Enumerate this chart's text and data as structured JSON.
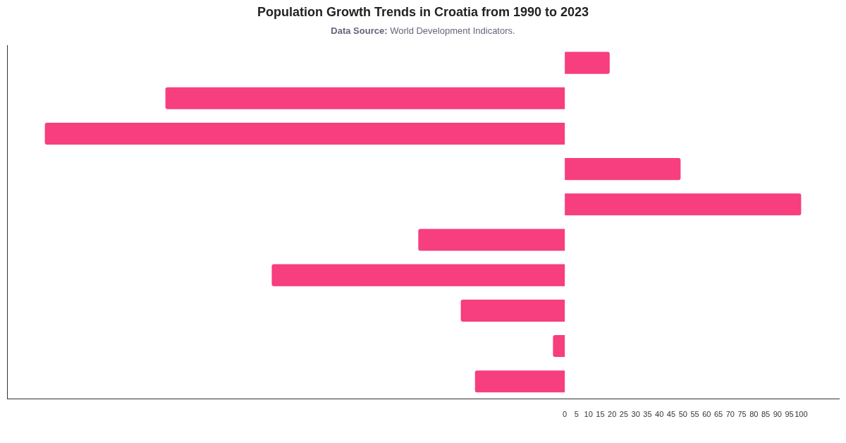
{
  "chart_data": {
    "type": "bar",
    "orientation": "horizontal",
    "title": "Population Growth Trends in Croatia from 1990 to 2023",
    "subtitle": "Data Source: World Development Indicators.",
    "categories": [
      null,
      null,
      null,
      null,
      null,
      null,
      null,
      null,
      null,
      null
    ],
    "values": [
      19,
      -169,
      -220,
      49,
      100,
      -62,
      -124,
      -44,
      -5,
      -38
    ],
    "color": "#f73e7e",
    "xlim": [
      -236,
      116
    ],
    "xticks": [
      0,
      5,
      10,
      15,
      20,
      25,
      30,
      35,
      40,
      45,
      50,
      55,
      60,
      65,
      70,
      75,
      80,
      85,
      90,
      95,
      100
    ],
    "tick_labels": "x"
  }
}
